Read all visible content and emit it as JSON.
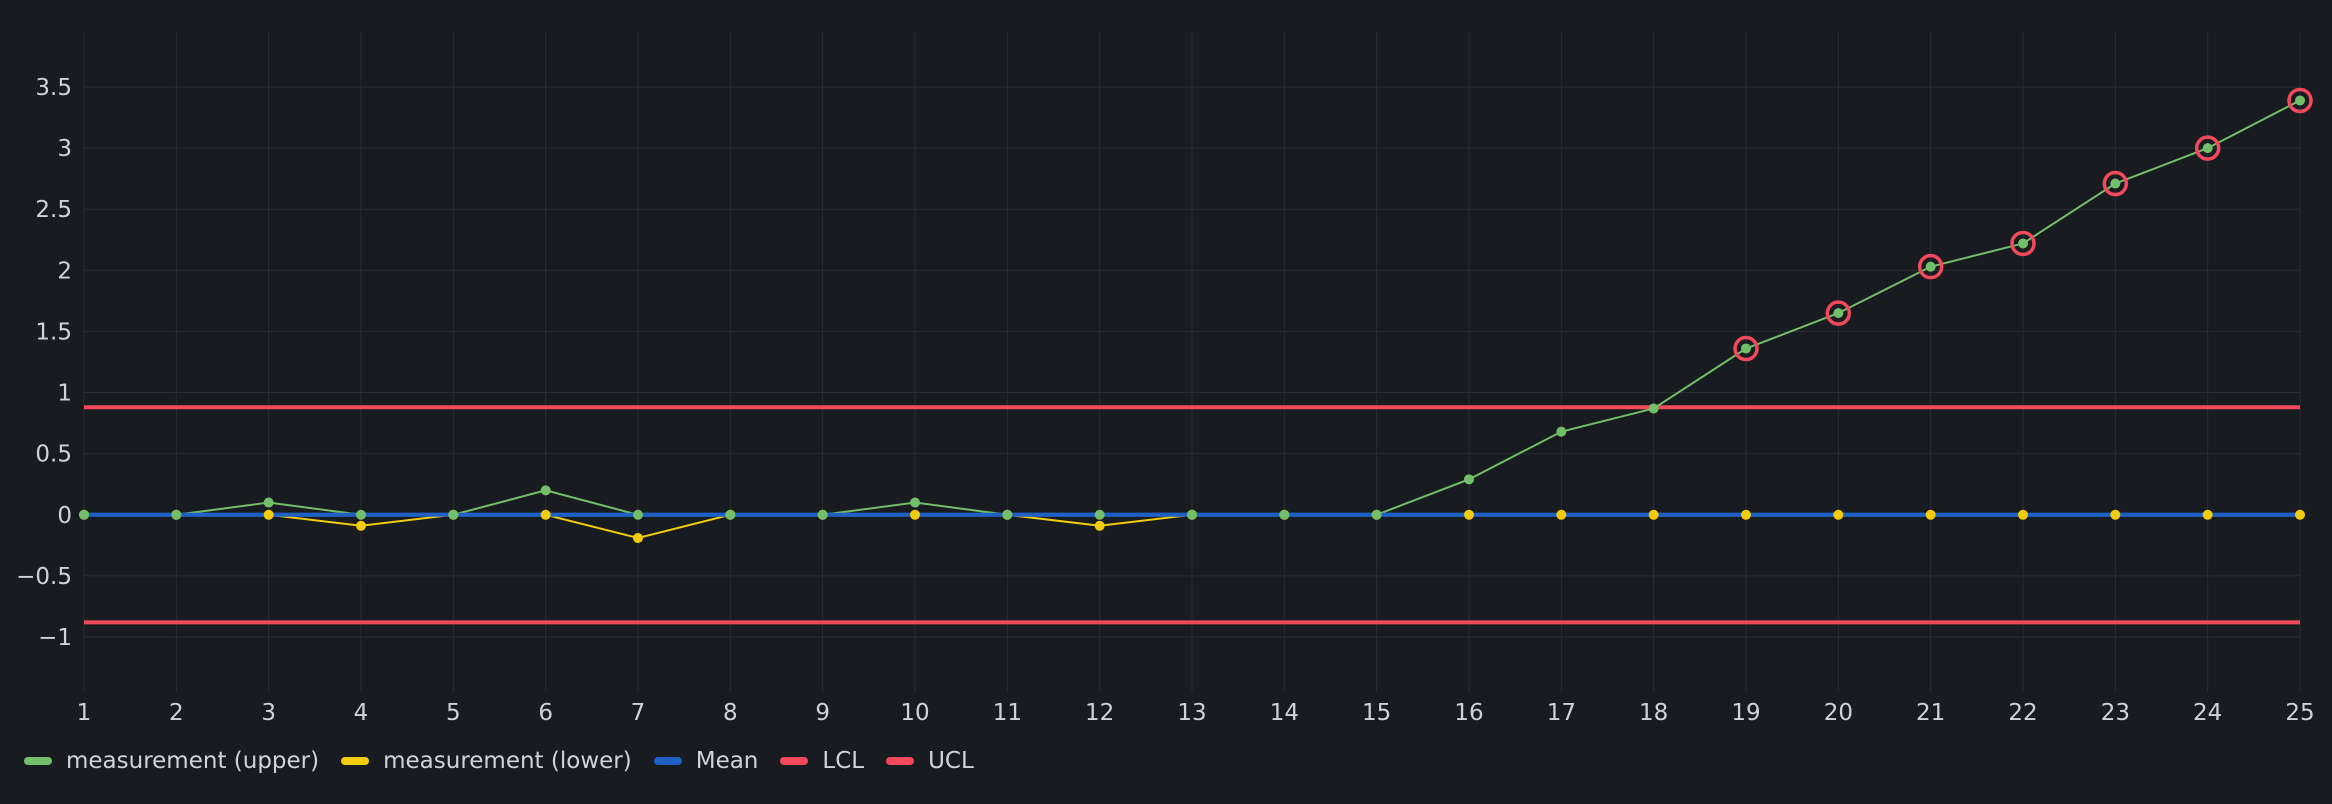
{
  "chart_data": {
    "type": "line",
    "title": "",
    "xlabel": "",
    "ylabel": "",
    "x": [
      1,
      2,
      3,
      4,
      5,
      6,
      7,
      8,
      9,
      10,
      11,
      12,
      13,
      14,
      15,
      16,
      17,
      18,
      19,
      20,
      21,
      22,
      23,
      24,
      25
    ],
    "x_ticks": [
      "1",
      "2",
      "3",
      "4",
      "5",
      "6",
      "7",
      "8",
      "9",
      "10",
      "11",
      "12",
      "13",
      "14",
      "15",
      "16",
      "17",
      "18",
      "19",
      "20",
      "21",
      "22",
      "23",
      "24",
      "25"
    ],
    "xlim": [
      1,
      25
    ],
    "ylim": [
      -1.45,
      3.95
    ],
    "y_ticks": [
      -1,
      -0.5,
      0,
      0.5,
      1,
      1.5,
      2,
      2.5,
      3,
      3.5
    ],
    "y_tick_labels": [
      "−1",
      "−0.5",
      "0",
      "0.5",
      "1",
      "1.5",
      "2",
      "2.5",
      "3",
      "3.5"
    ],
    "grid": true,
    "legend_position": "bottom-left",
    "series": [
      {
        "name": "measurement (upper)",
        "color": "#73bf69",
        "style": "line-points",
        "values": [
          0,
          0,
          0.1,
          0,
          0,
          0.2,
          0,
          0,
          0,
          0.1,
          0,
          0,
          0,
          0,
          0,
          0.29,
          0.68,
          0.87,
          1.36,
          1.65,
          2.03,
          2.22,
          2.71,
          3.0,
          3.39
        ]
      },
      {
        "name": "measurement (lower)",
        "color": "#f2cc0c",
        "style": "line-points",
        "values": [
          0,
          0,
          0,
          -0.09,
          0,
          0,
          -0.19,
          0,
          0,
          0,
          0,
          -0.09,
          0,
          0,
          0,
          0,
          0,
          0,
          0,
          0,
          0,
          0,
          0,
          0,
          0
        ]
      },
      {
        "name": "Mean",
        "color": "#1f60c4",
        "style": "hline",
        "value": 0
      },
      {
        "name": "LCL",
        "color": "#f2495c",
        "style": "hline",
        "value": -0.88
      },
      {
        "name": "UCL",
        "color": "#f2495c",
        "style": "hline",
        "value": 0.88
      }
    ],
    "out_of_control": {
      "color": "#f2495c",
      "indices": [
        18,
        19,
        20,
        21,
        22,
        23,
        24
      ]
    }
  },
  "legend": [
    {
      "label": "measurement (upper)",
      "color": "#73bf69"
    },
    {
      "label": "measurement (lower)",
      "color": "#f2cc0c"
    },
    {
      "label": "Mean",
      "color": "#1f60c4"
    },
    {
      "label": "LCL",
      "color": "#f2495c"
    },
    {
      "label": "UCL",
      "color": "#f2495c"
    }
  ]
}
